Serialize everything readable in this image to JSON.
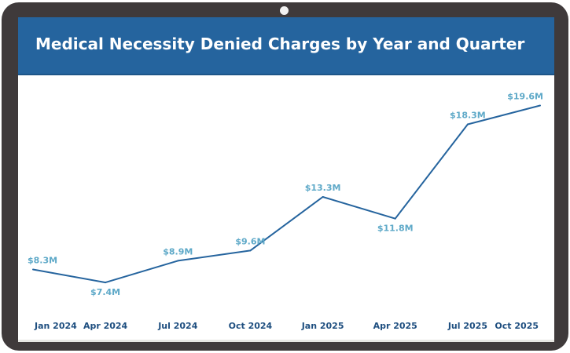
{
  "header": {
    "title": "Medical Necessity Denied Charges by Year and Quarter"
  },
  "colors": {
    "header_bg": "#25649e",
    "frame": "#3f3a3b",
    "line": "#25649e",
    "point_label": "#5ea9c8",
    "tick_label": "#1f4f80"
  },
  "chart_data": {
    "type": "line",
    "title": "Medical Necessity Denied Charges by Year and Quarter",
    "xlabel": "",
    "ylabel": "",
    "categories": [
      "Jan 2024",
      "Apr 2024",
      "Jul 2024",
      "Oct 2024",
      "Jan 2025",
      "Apr 2025",
      "Jul 2025",
      "Oct 2025"
    ],
    "series": [
      {
        "values": [
          8.3,
          7.4,
          8.9,
          9.6,
          13.3,
          11.8,
          18.3,
          19.6
        ],
        "labels": [
          "$8.3M",
          "$7.4M",
          "$8.9M",
          "$9.6M",
          "$13.3M",
          "$11.8M",
          "$18.3M",
          "$19.6M"
        ]
      }
    ],
    "label_positions": [
      "above",
      "below",
      "above",
      "above",
      "above",
      "below",
      "above",
      "above"
    ],
    "ylim": [
      6.0,
      20.6
    ],
    "grid": false,
    "legend": "none"
  }
}
